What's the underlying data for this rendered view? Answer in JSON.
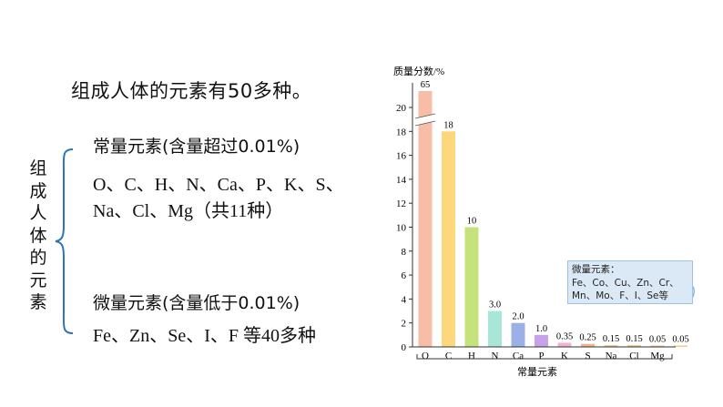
{
  "intro": "组成人体的元素有50多种。",
  "side_label": "组成人体的元素",
  "major": {
    "heading": "常量元素(含量超过0.01%)",
    "line1": "O、C、H、N、Ca、P、K、S、",
    "line2": "Na、Cl、Mg（共11种）"
  },
  "trace": {
    "heading": "微量元素(含量低于0.01%)",
    "line1": "Fe、Zn、Se、I、F 等40多种"
  },
  "chart_data": {
    "type": "bar",
    "ylabel": "质量分数/%",
    "xlabel": "常量元素",
    "ylim": [
      0,
      20
    ],
    "y_ticks": [
      0,
      2,
      4,
      6,
      8,
      10,
      12,
      14,
      16,
      18,
      20
    ],
    "axis_break": true,
    "categories": [
      "O",
      "C",
      "H",
      "N",
      "Ca",
      "P",
      "K",
      "S",
      "Na",
      "Cl",
      "Mg",
      ""
    ],
    "values": [
      65,
      18,
      10,
      3.0,
      2.0,
      1.0,
      0.35,
      0.25,
      0.15,
      0.15,
      0.05,
      0.05
    ],
    "value_labels": [
      "65",
      "18",
      "10",
      "3.0",
      "2.0",
      "1.0",
      "0.35",
      "0.25",
      "0.15",
      "0.15",
      "0.05",
      "0.05"
    ],
    "colors": [
      "#f8bda6",
      "#fcd77b",
      "#c5e27c",
      "#a8e6d8",
      "#9ab0e6",
      "#c6a2e8",
      "#f2b3d6",
      "#f6b08c",
      "#f6c98a",
      "#f6c98a",
      "#f6c98a",
      "#f6c98a"
    ]
  },
  "callout": {
    "title": "微量元素：",
    "line1": "Fe、Co、Cu、Zn、Cr、",
    "line2": "Mn、Mo、F、I、Se等"
  }
}
